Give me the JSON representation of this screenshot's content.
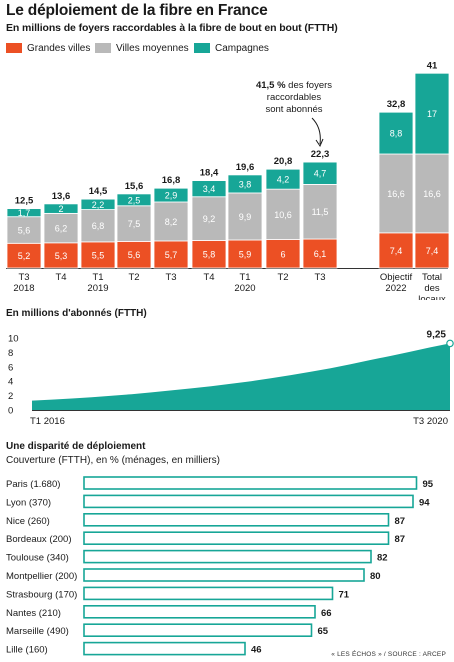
{
  "title": "Le déploiement de la fibre en France",
  "subtitle": "En millions de foyers raccordables à la fibre de bout en bout (FTTH)",
  "colors": {
    "grandes_villes": "#ec5024",
    "villes_moyennes": "#b9b9b9",
    "campagnes": "#17a697",
    "line_area": "#17a697",
    "text": "#1a1a1a"
  },
  "legend": [
    {
      "label": "Grandes villes",
      "color": "#ec5024"
    },
    {
      "label": "Villes moyennes",
      "color": "#b9b9b9"
    },
    {
      "label": "Campagnes",
      "color": "#17a697"
    }
  ],
  "annotation": {
    "bold": "41,5 %",
    "lines": [
      "41,5 % des foyers",
      "raccordables",
      "sont abonnés"
    ]
  },
  "chart_data": [
    {
      "type": "bar",
      "stacked": true,
      "title": "En millions de foyers raccordables à la fibre de bout en bout (FTTH)",
      "categories": [
        [
          "T3",
          "2018"
        ],
        [
          "T4",
          ""
        ],
        [
          "T1",
          "2019"
        ],
        [
          "T2",
          ""
        ],
        [
          "T3",
          ""
        ],
        [
          "T4",
          ""
        ],
        [
          "T1",
          "2020"
        ],
        [
          "T2",
          ""
        ],
        [
          "T3",
          ""
        ],
        [
          "Objectif",
          "2022"
        ],
        [
          "Total",
          "des",
          "locaux",
          "français"
        ]
      ],
      "series": [
        {
          "name": "Grandes villes",
          "values": [
            5.2,
            5.3,
            5.5,
            5.6,
            5.7,
            5.8,
            5.9,
            6,
            6.1,
            7.4,
            7.4
          ],
          "labels": [
            "5,2",
            "5,3",
            "5,5",
            "5,6",
            "5,7",
            "5,8",
            "5,9",
            "6",
            "6,1",
            "7,4",
            "7,4"
          ]
        },
        {
          "name": "Villes moyennes",
          "values": [
            5.6,
            6.2,
            6.8,
            7.5,
            8.2,
            9.2,
            9.9,
            10.6,
            11.5,
            16.6,
            16.6
          ],
          "labels": [
            "5,6",
            "6,2",
            "6,8",
            "7,5",
            "8,2",
            "9,2",
            "9,9",
            "10,6",
            "11,5",
            "16,6",
            "16,6"
          ]
        },
        {
          "name": "Campagnes",
          "values": [
            1.7,
            2,
            2.2,
            2.5,
            2.9,
            3.4,
            3.8,
            4.2,
            4.7,
            8.8,
            17
          ],
          "labels": [
            "1,7",
            "2",
            "2,2",
            "2,5",
            "2,9",
            "3,4",
            "3,8",
            "4,2",
            "4,7",
            "8,8",
            "17"
          ]
        }
      ],
      "totals": [
        12.5,
        13.6,
        14.5,
        15.6,
        16.8,
        18.4,
        19.6,
        20.8,
        22.3,
        32.8,
        41
      ],
      "total_labels": [
        "12,5",
        "13,6",
        "14,5",
        "15,6",
        "16,8",
        "18,4",
        "19,6",
        "20,8",
        "22,3",
        "32,8",
        "41"
      ],
      "ylim": [
        0,
        41
      ]
    },
    {
      "type": "area",
      "title": "En millions d'abonnés (FTTH)",
      "x_start_label": "T1 2016",
      "x_end_label": "T3 2020",
      "y_ticks": [
        0,
        2,
        4,
        6,
        8,
        10
      ],
      "ylim": [
        0,
        10
      ],
      "values": [
        1.3,
        1.45,
        1.6,
        1.78,
        1.98,
        2.2,
        2.45,
        2.72,
        3.0,
        3.3,
        3.65,
        4.0,
        4.4,
        4.85,
        5.3,
        5.8,
        6.35,
        6.95,
        7.5,
        8.1,
        8.7,
        9.25
      ],
      "end_label": "9,25"
    },
    {
      "type": "bar",
      "orientation": "horizontal",
      "title": "Une disparité de déploiement",
      "subtitle": "Couverture (FTTH), en % (ménages, en milliers)",
      "categories": [
        "Paris",
        "Lyon",
        "Nice",
        "Bordeaux",
        "Toulouse",
        "Montpellier",
        "Strasbourg",
        "Nantes",
        "Marseille",
        "Lille"
      ],
      "category_notes": [
        "(1.680)",
        "(370)",
        "(260)",
        "(200)",
        "(340)",
        "(200)",
        "(170)",
        "(210)",
        "(490)",
        "(160)"
      ],
      "values": [
        95,
        94,
        87,
        87,
        82,
        80,
        71,
        66,
        65,
        46
      ],
      "xlim": [
        0,
        100
      ]
    }
  ],
  "source": "« LES ÉCHOS » / SOURCE : ARCEP"
}
